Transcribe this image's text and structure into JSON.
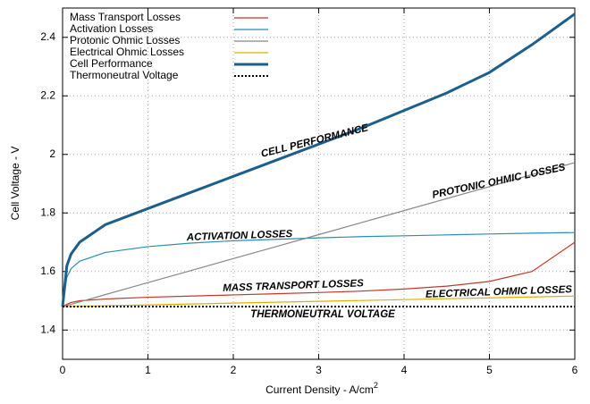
{
  "chart_data": {
    "type": "line",
    "xlabel": "Current Density - A/cm",
    "xlabel_sup": "2",
    "ylabel": "Cell Voltage - V",
    "x": [
      0,
      0.05,
      0.1,
      0.2,
      0.5,
      1,
      1.5,
      2,
      2.5,
      3,
      3.5,
      4,
      4.5,
      5,
      5.5,
      6
    ],
    "series": [
      {
        "name": "Mass Transport Losses",
        "color": "#c0392b",
        "width": 1.2,
        "dash": false,
        "values": [
          1.48,
          1.488,
          1.494,
          1.5,
          1.506,
          1.512,
          1.516,
          1.52,
          1.524,
          1.528,
          1.533,
          1.54,
          1.55,
          1.566,
          1.6,
          1.7
        ]
      },
      {
        "name": "Activation Losses",
        "color": "#2a8db5",
        "width": 1.2,
        "dash": false,
        "values": [
          1.48,
          1.58,
          1.61,
          1.635,
          1.665,
          1.685,
          1.697,
          1.705,
          1.71,
          1.715,
          1.719,
          1.722,
          1.725,
          1.728,
          1.731,
          1.733
        ]
      },
      {
        "name": "Protonic Ohmic Losses",
        "color": "#888888",
        "width": 1.2,
        "dash": false,
        "values": [
          1.48,
          1.484,
          1.488,
          1.496,
          1.521,
          1.562,
          1.603,
          1.644,
          1.685,
          1.726,
          1.767,
          1.808,
          1.849,
          1.89,
          1.931,
          1.972
        ]
      },
      {
        "name": "Electrical Ohmic Losses",
        "color": "#e0b000",
        "width": 1.2,
        "dash": false,
        "values": [
          1.48,
          1.48,
          1.481,
          1.481,
          1.483,
          1.486,
          1.489,
          1.492,
          1.495,
          1.498,
          1.501,
          1.504,
          1.507,
          1.51,
          1.513,
          1.516
        ]
      },
      {
        "name": "Cell Performance",
        "color": "#1c5f8c",
        "width": 3,
        "dash": false,
        "values": [
          1.48,
          1.62,
          1.66,
          1.7,
          1.76,
          1.815,
          1.87,
          1.925,
          1.98,
          2.035,
          2.09,
          2.15,
          2.21,
          2.28,
          2.375,
          2.48
        ]
      },
      {
        "name": "Thermoneutral Voltage",
        "color": "#000000",
        "width": 2,
        "dash": true,
        "values": [
          1.48,
          1.48,
          1.48,
          1.48,
          1.48,
          1.48,
          1.48,
          1.48,
          1.48,
          1.48,
          1.48,
          1.48,
          1.48,
          1.48,
          1.48,
          1.48
        ]
      }
    ],
    "annotations": [
      "CELL PERFORMANCE",
      "PROTONIC OHMIC LOSSES",
      "ACTIVATION LOSSES",
      "MASS TRANSPORT LOSSES",
      "ELECTRICAL OHMIC LOSSES",
      "THERMONEUTRAL VOLTAGE"
    ],
    "xlim": [
      0,
      6
    ],
    "xticks": [
      0,
      1,
      2,
      3,
      4,
      5,
      6
    ],
    "ylim": [
      1.3,
      2.5
    ],
    "yticks": [
      1.4,
      1.6,
      1.8,
      2,
      2.2,
      2.4
    ],
    "grid": true,
    "legend": "top-left"
  }
}
